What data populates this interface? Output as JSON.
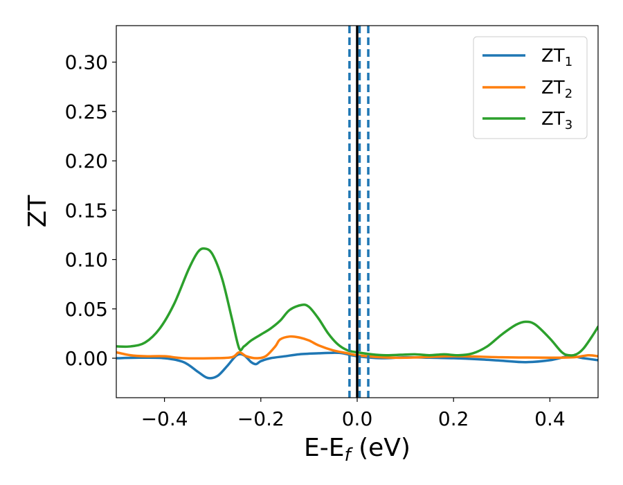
{
  "chart_data": {
    "type": "line",
    "xlabel": "E-E",
    "xlabel_sub": "f",
    "xlabel_unit": " (eV)",
    "ylabel": "ZT",
    "xlim": [
      -0.5,
      0.5
    ],
    "ylim": [
      -0.04,
      0.337
    ],
    "xticks": [
      -0.4,
      -0.2,
      0.0,
      0.2,
      0.4
    ],
    "xtick_labels": [
      "−0.4",
      "−0.2",
      "0.0",
      "0.2",
      "0.4"
    ],
    "yticks": [
      0.0,
      0.05,
      0.1,
      0.15,
      0.2,
      0.25,
      0.3
    ],
    "ytick_labels": [
      "0.00",
      "0.05",
      "0.10",
      "0.15",
      "0.20",
      "0.25",
      "0.30"
    ],
    "grid": false,
    "legend_position": "top-right",
    "vlines": [
      {
        "x": 0.0,
        "style": "solid",
        "color": "#000000"
      },
      {
        "x": -0.016,
        "style": "dashed",
        "color": "#1f77b4"
      },
      {
        "x": 0.005,
        "style": "dashed",
        "color": "#1f77b4"
      },
      {
        "x": 0.023,
        "style": "dashed",
        "color": "#1f77b4"
      }
    ],
    "series": [
      {
        "name": "ZT",
        "name_sub": "1",
        "color": "#1f77b4",
        "points": [
          [
            -0.5,
            0.0
          ],
          [
            -0.45,
            0.0005
          ],
          [
            -0.4,
            0.0
          ],
          [
            -0.36,
            -0.004
          ],
          [
            -0.33,
            -0.014
          ],
          [
            -0.31,
            -0.02
          ],
          [
            -0.29,
            -0.018
          ],
          [
            -0.27,
            -0.008
          ],
          [
            -0.25,
            0.003
          ],
          [
            -0.235,
            0.003
          ],
          [
            -0.22,
            -0.004
          ],
          [
            -0.21,
            -0.006
          ],
          [
            -0.2,
            -0.003
          ],
          [
            -0.18,
            0.0
          ],
          [
            -0.15,
            0.002
          ],
          [
            -0.12,
            0.004
          ],
          [
            -0.08,
            0.005
          ],
          [
            -0.05,
            0.0055
          ],
          [
            -0.03,
            0.005
          ],
          [
            0.0,
            0.002
          ],
          [
            0.05,
            0.0
          ],
          [
            0.1,
            0.001
          ],
          [
            0.15,
            0.0005
          ],
          [
            0.2,
            0.0
          ],
          [
            0.25,
            -0.001
          ],
          [
            0.3,
            -0.0025
          ],
          [
            0.35,
            -0.004
          ],
          [
            0.4,
            -0.002
          ],
          [
            0.44,
            0.002
          ],
          [
            0.47,
            0.0
          ],
          [
            0.5,
            -0.002
          ]
        ]
      },
      {
        "name": "ZT",
        "name_sub": "2",
        "color": "#ff7f0e",
        "points": [
          [
            -0.5,
            0.006
          ],
          [
            -0.47,
            0.003
          ],
          [
            -0.44,
            0.002
          ],
          [
            -0.4,
            0.002
          ],
          [
            -0.36,
            0.0
          ],
          [
            -0.3,
            0.0
          ],
          [
            -0.26,
            0.001
          ],
          [
            -0.245,
            0.006
          ],
          [
            -0.23,
            0.002
          ],
          [
            -0.21,
            0.0
          ],
          [
            -0.19,
            0.002
          ],
          [
            -0.17,
            0.012
          ],
          [
            -0.16,
            0.019
          ],
          [
            -0.14,
            0.022
          ],
          [
            -0.12,
            0.021
          ],
          [
            -0.1,
            0.018
          ],
          [
            -0.08,
            0.013
          ],
          [
            -0.05,
            0.008
          ],
          [
            -0.02,
            0.005
          ],
          [
            0.0,
            0.003
          ],
          [
            0.05,
            0.001
          ],
          [
            0.1,
            0.0005
          ],
          [
            0.2,
            0.002
          ],
          [
            0.3,
            0.001
          ],
          [
            0.4,
            0.0005
          ],
          [
            0.45,
            0.001
          ],
          [
            0.48,
            0.003
          ],
          [
            0.5,
            0.002
          ]
        ]
      },
      {
        "name": "ZT",
        "name_sub": "3",
        "color": "#2ca02c",
        "points": [
          [
            -0.5,
            0.012
          ],
          [
            -0.47,
            0.012
          ],
          [
            -0.44,
            0.016
          ],
          [
            -0.41,
            0.03
          ],
          [
            -0.38,
            0.055
          ],
          [
            -0.35,
            0.09
          ],
          [
            -0.33,
            0.108
          ],
          [
            -0.315,
            0.111
          ],
          [
            -0.3,
            0.105
          ],
          [
            -0.28,
            0.08
          ],
          [
            -0.26,
            0.04
          ],
          [
            -0.245,
            0.01
          ],
          [
            -0.235,
            0.012
          ],
          [
            -0.22,
            0.018
          ],
          [
            -0.2,
            0.024
          ],
          [
            -0.18,
            0.03
          ],
          [
            -0.16,
            0.038
          ],
          [
            -0.14,
            0.049
          ],
          [
            -0.115,
            0.054
          ],
          [
            -0.1,
            0.052
          ],
          [
            -0.08,
            0.04
          ],
          [
            -0.06,
            0.025
          ],
          [
            -0.04,
            0.014
          ],
          [
            -0.02,
            0.008
          ],
          [
            0.0,
            0.006
          ],
          [
            0.03,
            0.004
          ],
          [
            0.06,
            0.003
          ],
          [
            0.09,
            0.0035
          ],
          [
            0.12,
            0.004
          ],
          [
            0.15,
            0.003
          ],
          [
            0.18,
            0.004
          ],
          [
            0.21,
            0.003
          ],
          [
            0.24,
            0.005
          ],
          [
            0.27,
            0.012
          ],
          [
            0.3,
            0.024
          ],
          [
            0.33,
            0.034
          ],
          [
            0.35,
            0.037
          ],
          [
            0.37,
            0.034
          ],
          [
            0.4,
            0.02
          ],
          [
            0.425,
            0.006
          ],
          [
            0.44,
            0.003
          ],
          [
            0.455,
            0.004
          ],
          [
            0.47,
            0.01
          ],
          [
            0.49,
            0.024
          ],
          [
            0.5,
            0.032
          ]
        ]
      }
    ]
  }
}
